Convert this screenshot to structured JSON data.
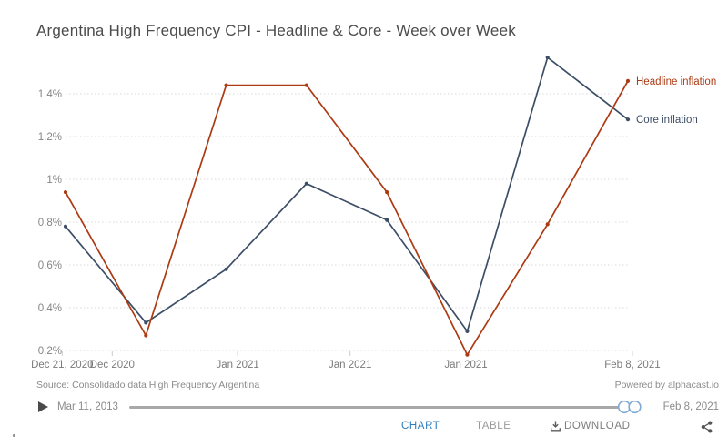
{
  "header": {
    "title": "Argentina High Frequency CPI - Headline & Core - Week over Week"
  },
  "chart_data": {
    "type": "line",
    "title": "Argentina High Frequency CPI - Headline & Core - Week over Week",
    "ylim": [
      0.2,
      1.4
    ],
    "grid": "dashed-horizontal",
    "legend_position": "right-of-line-ends",
    "y_ticks": [
      0.2,
      0.4,
      0.6,
      0.8,
      1.0,
      1.2,
      1.4
    ],
    "y_tick_labels": [
      "0.2%",
      "0.4%",
      "0.6%",
      "0.8%",
      "1%",
      "1.2%",
      "1.4%"
    ],
    "x_ticks": [
      {
        "label": "Dec 21, 2020",
        "pos": -0.006
      },
      {
        "label": "Dec 2020",
        "pos": 0.083
      },
      {
        "label": "Jan 2021",
        "pos": 0.306
      },
      {
        "label": "Jan 2021",
        "pos": 0.506
      },
      {
        "label": "Jan 2021",
        "pos": 0.712
      },
      {
        "label": "Feb 8, 2021",
        "pos": 1.008
      }
    ],
    "series": [
      {
        "name": "Core inflation",
        "color": "#3c4e66",
        "values": [
          0.78,
          0.33,
          0.58,
          0.98,
          0.81,
          0.29,
          1.57,
          1.28
        ]
      },
      {
        "name": "Headline inflation",
        "color": "#ac3a13",
        "values": [
          0.94,
          0.27,
          1.44,
          1.44,
          0.94,
          0.18,
          0.79,
          1.46
        ]
      }
    ]
  },
  "footer": {
    "source": "Source: Consolidado data High Frequency Argentina",
    "powered_by": "Powered by alphacast.io",
    "timeline": {
      "start_date": "Mar 11, 2013",
      "end_date": "Feb 8, 2021"
    },
    "tabs": {
      "chart": "CHART",
      "table": "TABLE",
      "download": "DOWNLOAD"
    }
  },
  "colors": {
    "active_tab": "#2e7dbc",
    "headline_series": "#ac3a13",
    "core_series": "#3c4e66"
  }
}
